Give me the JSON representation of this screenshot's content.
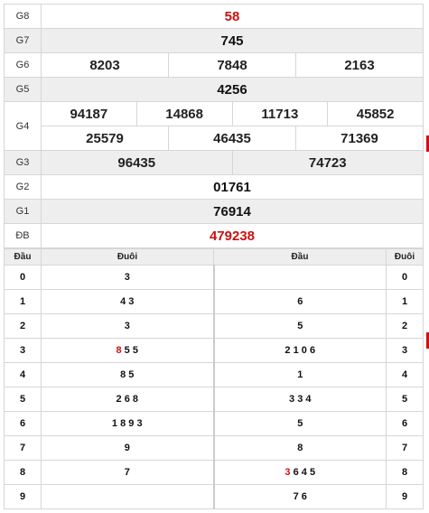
{
  "prizes": [
    {
      "label": "G8",
      "values": [
        "58"
      ],
      "red": true
    },
    {
      "label": "G7",
      "values": [
        "745"
      ]
    },
    {
      "label": "G6",
      "values": [
        "8203",
        "7848",
        "2163"
      ]
    },
    {
      "label": "G5",
      "values": [
        "4256"
      ]
    },
    {
      "label": "G4",
      "values": [
        "94187",
        "14868",
        "11713",
        "45852",
        "25579",
        "46435",
        "71369"
      ]
    },
    {
      "label": "G3",
      "values": [
        "96435",
        "74723"
      ]
    },
    {
      "label": "G2",
      "values": [
        "01761"
      ]
    },
    {
      "label": "G1",
      "values": [
        "76914"
      ]
    },
    {
      "label": "ĐB",
      "values": [
        "479238"
      ],
      "red": true
    }
  ],
  "loto": {
    "headers": [
      "Đầu",
      "Đuôi",
      "Đầu",
      "Đuôi"
    ],
    "rows": [
      {
        "dau": "0",
        "duoi": "3",
        "dau2": "",
        "duoi2": "0"
      },
      {
        "dau": "1",
        "duoi": "4 3",
        "dau2": "6",
        "duoi2": "1"
      },
      {
        "dau": "2",
        "duoi": "3",
        "dau2": "5",
        "duoi2": "2"
      },
      {
        "dau": "3",
        "duoi_hl": "8",
        "duoi": " 5 5",
        "dau2": "2 1 0 6",
        "duoi2": "3"
      },
      {
        "dau": "4",
        "duoi": "8 5",
        "dau2": "1",
        "duoi2": "4"
      },
      {
        "dau": "5",
        "duoi": "2 6 8",
        "dau2": "3 3 4",
        "duoi2": "5"
      },
      {
        "dau": "6",
        "duoi": "1 8 9 3",
        "dau2": "5",
        "duoi2": "6"
      },
      {
        "dau": "7",
        "duoi": "9",
        "dau2": "8",
        "duoi2": "7"
      },
      {
        "dau": "8",
        "duoi": "7",
        "dau2_hl": "3",
        "dau2": " 6 4 5",
        "duoi2": "8"
      },
      {
        "dau": "9",
        "duoi": "",
        "dau2": "7 6",
        "duoi2": "9"
      }
    ]
  },
  "colors": {
    "highlight": "#cc1111",
    "alt_row": "#eeeeee",
    "border": "#d6d6d6"
  }
}
